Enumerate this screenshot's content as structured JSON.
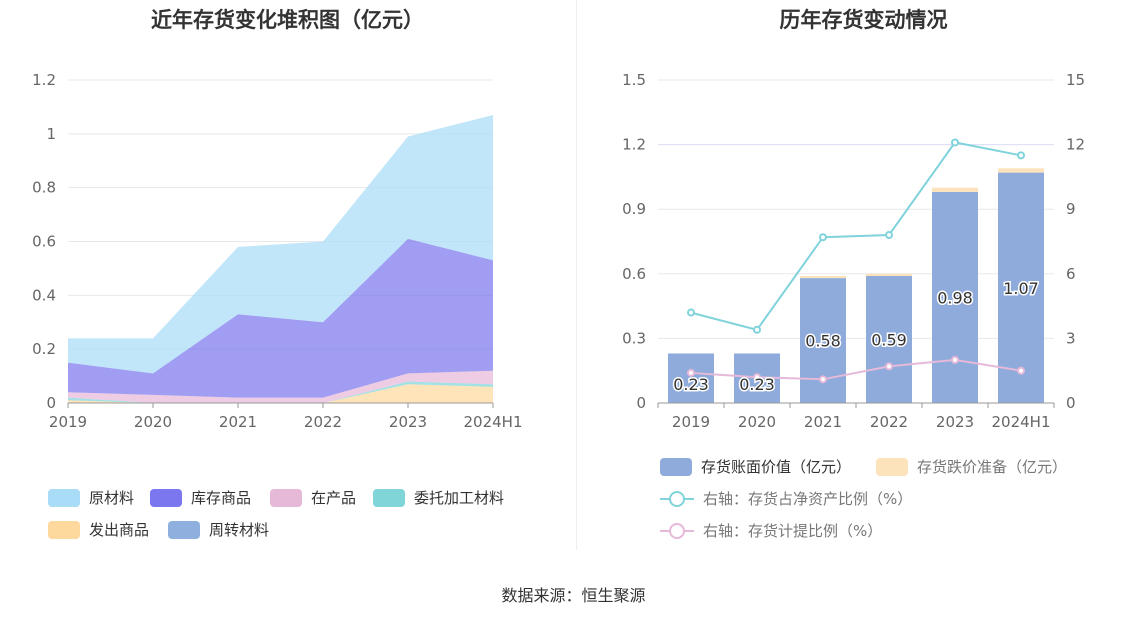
{
  "left_title": "近年存货变化堆积图（亿元）",
  "right_title": "历年存货变动情况",
  "source": "数据来源：恒生聚源",
  "colors": {
    "raw_material": "#a9ddf7",
    "inventory_goods": "#7b77ef",
    "wip": "#e6b9d9",
    "consigned": "#80d5d9",
    "shipped": "#fdd99d",
    "turnover": "#8fb0de",
    "bar_book": "#8eabdb",
    "bar_reserve": "#fde3bc",
    "line_ratio": "#80d3db",
    "line_provision": "#e6b9d9"
  },
  "chart_data": [
    {
      "type": "area",
      "stacked": true,
      "title": "近年存货变化堆积图（亿元）",
      "x": [
        "2019",
        "2020",
        "2021",
        "2022",
        "2023",
        "2024H1"
      ],
      "ylim": [
        0,
        1.2
      ],
      "yticks": [
        "0",
        "0.2",
        "0.4",
        "0.6",
        "0.8",
        "1",
        "1.2"
      ],
      "grid": true,
      "legend_position": "bottom",
      "series": [
        {
          "name": "发出商品",
          "color_key": "shipped",
          "values": [
            0.01,
            0.0,
            0.0,
            0.0,
            0.07,
            0.06
          ]
        },
        {
          "name": "委托加工材料",
          "color_key": "consigned",
          "values": [
            0.01,
            0.0,
            0.0,
            0.0,
            0.01,
            0.01
          ]
        },
        {
          "name": "周转材料",
          "color_key": "turnover",
          "values": [
            0.0,
            0.0,
            0.0,
            0.0,
            0.0,
            0.0
          ]
        },
        {
          "name": "在产品",
          "color_key": "wip",
          "values": [
            0.02,
            0.03,
            0.02,
            0.02,
            0.03,
            0.05
          ]
        },
        {
          "name": "库存商品",
          "color_key": "inventory_goods",
          "values": [
            0.11,
            0.08,
            0.31,
            0.28,
            0.5,
            0.41
          ]
        },
        {
          "name": "原材料",
          "color_key": "raw_material",
          "values": [
            0.09,
            0.13,
            0.25,
            0.3,
            0.38,
            0.54
          ]
        }
      ],
      "legend": [
        {
          "name": "原材料",
          "color_key": "raw_material"
        },
        {
          "name": "库存商品",
          "color_key": "inventory_goods"
        },
        {
          "name": "在产品",
          "color_key": "wip"
        },
        {
          "name": "委托加工材料",
          "color_key": "consigned"
        },
        {
          "name": "发出商品",
          "color_key": "shipped"
        },
        {
          "name": "周转材料",
          "color_key": "turnover"
        }
      ]
    },
    {
      "type": "bar",
      "stacked": true,
      "title": "历年存货变动情况",
      "categories": [
        "2019",
        "2020",
        "2021",
        "2022",
        "2023",
        "2024H1"
      ],
      "ylim": [
        0,
        1.5
      ],
      "yticks": [
        "0",
        "0.3",
        "0.6",
        "0.9",
        "1.2",
        "1.5"
      ],
      "y2lim": [
        0,
        15
      ],
      "y2ticks": [
        "0",
        "3",
        "6",
        "9",
        "12",
        "15"
      ],
      "grid": true,
      "legend_position": "bottom",
      "series": [
        {
          "name": "存货账面价值（亿元）",
          "color_key": "bar_book",
          "values": [
            0.23,
            0.23,
            0.58,
            0.59,
            0.98,
            1.07
          ],
          "labels": [
            "0.23",
            "0.23",
            "0.58",
            "0.59",
            "0.98",
            "1.07"
          ]
        },
        {
          "name": "存货跌价准备（亿元）",
          "color_key": "bar_reserve",
          "values": [
            0.0,
            0.0,
            0.01,
            0.01,
            0.02,
            0.02
          ]
        }
      ],
      "lines": [
        {
          "name": "右轴：存货占净资产比例（%）",
          "color_key": "line_ratio",
          "axis": "right",
          "values": [
            4.2,
            3.4,
            7.7,
            7.8,
            12.1,
            11.5
          ]
        },
        {
          "name": "右轴：存货计提比例（%）",
          "color_key": "line_provision",
          "axis": "right",
          "values": [
            1.4,
            1.2,
            1.1,
            1.7,
            2.0,
            1.5
          ]
        }
      ]
    }
  ]
}
